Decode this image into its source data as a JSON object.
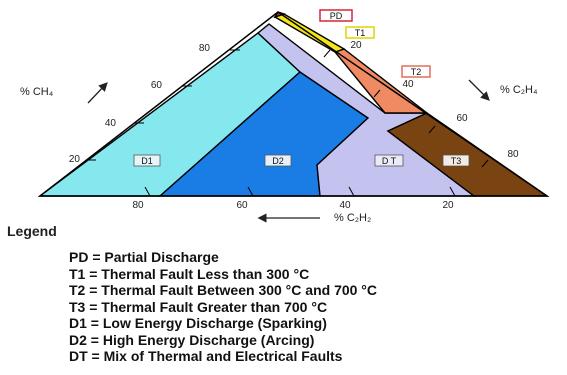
{
  "diagram": {
    "axis_titles": {
      "ch4": "% CH₄",
      "c2h4": "% C₂H₄",
      "c2h2": "% C₂H₂"
    },
    "ch4_ticks": [
      "80",
      "60",
      "40",
      "20"
    ],
    "c2h4_ticks": [
      "20",
      "40",
      "60",
      "80"
    ],
    "c2h2_ticks": [
      "80",
      "60",
      "40",
      "20"
    ],
    "zones": {
      "PD": "PD",
      "T1": "T1",
      "T2": "T2",
      "D1": "D1",
      "D2": "D2",
      "DT": "D T",
      "T3": "T3"
    },
    "colors": {
      "PD": "#d6273a",
      "T1": "#f2e61a",
      "T2": "#f08a62",
      "D1": "#86e8ef",
      "D2": "#1a7de6",
      "DT": "#c4c2ee",
      "T3": "#7a4312",
      "outline": "#000000"
    }
  },
  "legend": {
    "title": "Legend",
    "items": [
      "PD = Partial Discharge",
      "T1 = Thermal Fault Less than 300 °C",
      "T2 = Thermal Fault Between 300 °C and 700 °C",
      "T3 =  Thermal Fault Greater than 700 °C",
      "D1 = Low Energy Discharge (Sparking)",
      "D2 = High Energy Discharge (Arcing)",
      "DT = Mix of Thermal and Electrical Faults"
    ]
  }
}
